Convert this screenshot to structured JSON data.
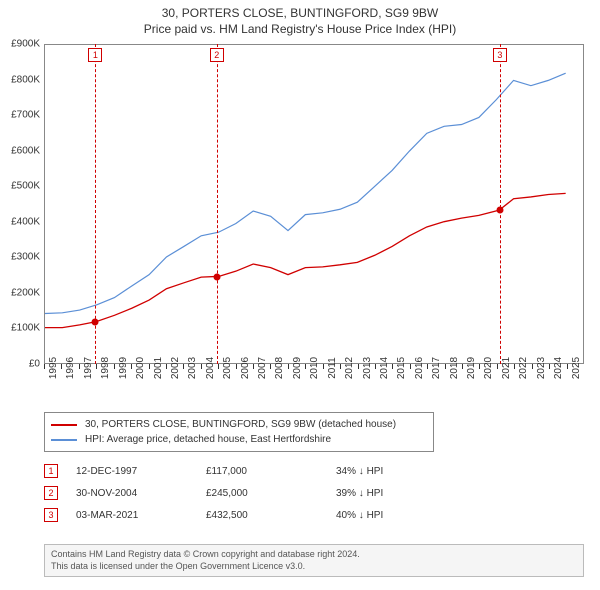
{
  "title_line1": "30, PORTERS CLOSE, BUNTINGFORD, SG9 9BW",
  "title_line2": "Price paid vs. HM Land Registry's House Price Index (HPI)",
  "chart": {
    "type": "line",
    "background_color": "#ffffff",
    "axis_color": "#888888",
    "text_color": "#333333",
    "x": {
      "min": 1995,
      "max": 2026,
      "ticks": [
        1995,
        1996,
        1997,
        1998,
        1999,
        2000,
        2001,
        2002,
        2003,
        2004,
        2005,
        2006,
        2007,
        2008,
        2009,
        2010,
        2011,
        2012,
        2013,
        2014,
        2015,
        2016,
        2017,
        2018,
        2019,
        2020,
        2021,
        2022,
        2023,
        2024,
        2025
      ],
      "tick_fontsize": 10,
      "tick_rotation_deg": -90
    },
    "y": {
      "min": 0,
      "max": 900000,
      "ticks": [
        0,
        100000,
        200000,
        300000,
        400000,
        500000,
        600000,
        700000,
        800000,
        900000
      ],
      "tick_labels": [
        "£0",
        "£100K",
        "£200K",
        "£300K",
        "£400K",
        "£500K",
        "£600K",
        "£700K",
        "£800K",
        "£900K"
      ],
      "tick_fontsize": 10
    },
    "series": [
      {
        "name": "30, PORTERS CLOSE, BUNTINGFORD, SG9 9BW (detached house)",
        "color": "#d00000",
        "line_width": 1.3,
        "data": [
          [
            1995,
            100000
          ],
          [
            1996,
            100000
          ],
          [
            1997,
            108000
          ],
          [
            1997.95,
            117000
          ],
          [
            1999,
            135000
          ],
          [
            2000,
            155000
          ],
          [
            2001,
            178000
          ],
          [
            2002,
            210000
          ],
          [
            2003,
            227000
          ],
          [
            2004,
            243000
          ],
          [
            2004.92,
            245000
          ],
          [
            2005,
            245000
          ],
          [
            2006,
            260000
          ],
          [
            2007,
            280000
          ],
          [
            2008,
            270000
          ],
          [
            2009,
            250000
          ],
          [
            2010,
            270000
          ],
          [
            2011,
            272000
          ],
          [
            2012,
            278000
          ],
          [
            2013,
            285000
          ],
          [
            2014,
            305000
          ],
          [
            2015,
            330000
          ],
          [
            2016,
            360000
          ],
          [
            2017,
            385000
          ],
          [
            2018,
            400000
          ],
          [
            2019,
            410000
          ],
          [
            2020,
            418000
          ],
          [
            2021.17,
            432500
          ],
          [
            2022,
            465000
          ],
          [
            2023,
            470000
          ],
          [
            2024,
            477000
          ],
          [
            2025,
            480000
          ]
        ]
      },
      {
        "name": "HPI: Average price, detached house, East Hertfordshire",
        "color": "#5b8fd6",
        "line_width": 1.2,
        "data": [
          [
            1995,
            140000
          ],
          [
            1996,
            142000
          ],
          [
            1997,
            150000
          ],
          [
            1998,
            165000
          ],
          [
            1999,
            185000
          ],
          [
            2000,
            218000
          ],
          [
            2001,
            250000
          ],
          [
            2002,
            300000
          ],
          [
            2003,
            330000
          ],
          [
            2004,
            360000
          ],
          [
            2005,
            370000
          ],
          [
            2006,
            395000
          ],
          [
            2007,
            430000
          ],
          [
            2008,
            415000
          ],
          [
            2009,
            375000
          ],
          [
            2010,
            420000
          ],
          [
            2011,
            425000
          ],
          [
            2012,
            435000
          ],
          [
            2013,
            455000
          ],
          [
            2014,
            500000
          ],
          [
            2015,
            545000
          ],
          [
            2016,
            600000
          ],
          [
            2017,
            650000
          ],
          [
            2018,
            670000
          ],
          [
            2019,
            675000
          ],
          [
            2020,
            695000
          ],
          [
            2021,
            745000
          ],
          [
            2022,
            800000
          ],
          [
            2023,
            785000
          ],
          [
            2024,
            800000
          ],
          [
            2025,
            820000
          ]
        ]
      }
    ],
    "markers": [
      {
        "id": "1",
        "x": 1997.95,
        "y": 117000,
        "dash_color": "#d00000",
        "dot_color": "#d00000"
      },
      {
        "id": "2",
        "x": 2004.92,
        "y": 245000,
        "dash_color": "#d00000",
        "dot_color": "#d00000"
      },
      {
        "id": "3",
        "x": 2021.17,
        "y": 432500,
        "dash_color": "#d00000",
        "dot_color": "#d00000"
      }
    ]
  },
  "legend": {
    "items": [
      {
        "color": "#d00000",
        "label": "30, PORTERS CLOSE, BUNTINGFORD, SG9 9BW (detached house)"
      },
      {
        "color": "#5b8fd6",
        "label": "HPI: Average price, detached house, East Hertfordshire"
      }
    ]
  },
  "events": [
    {
      "id": "1",
      "date": "12-DEC-1997",
      "price": "£117,000",
      "delta": "34% ↓ HPI"
    },
    {
      "id": "2",
      "date": "30-NOV-2004",
      "price": "£245,000",
      "delta": "39% ↓ HPI"
    },
    {
      "id": "3",
      "date": "03-MAR-2021",
      "price": "£432,500",
      "delta": "40% ↓ HPI"
    }
  ],
  "footer": {
    "line1": "Contains HM Land Registry data © Crown copyright and database right 2024.",
    "line2": "This data is licensed under the Open Government Licence v3.0."
  }
}
